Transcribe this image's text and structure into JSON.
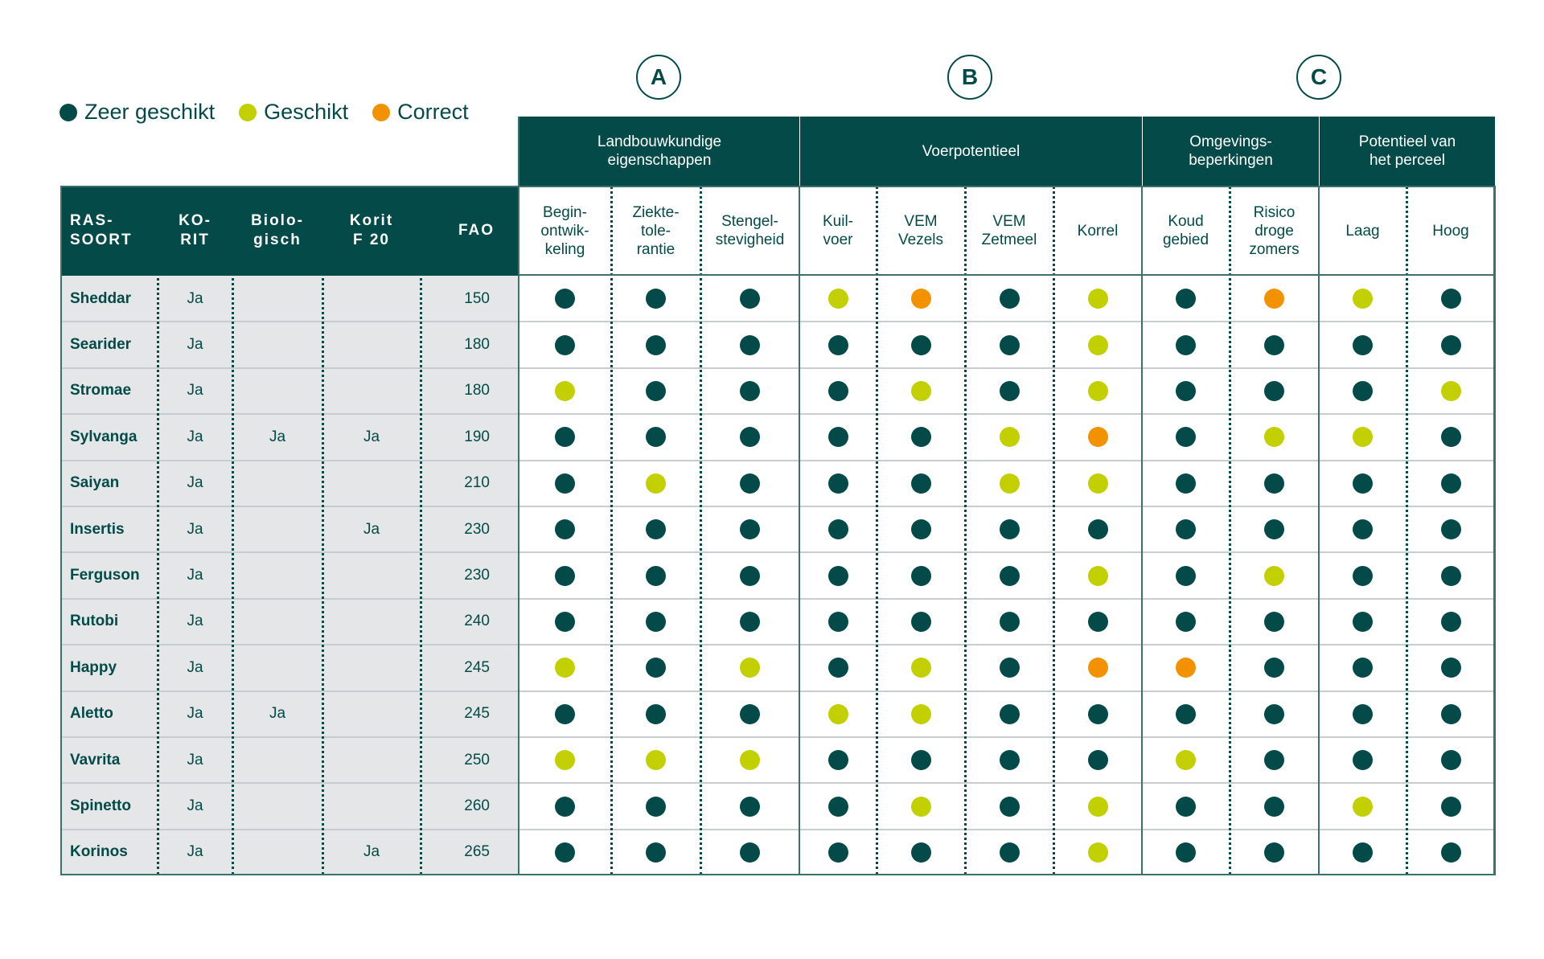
{
  "legend": [
    {
      "label": "Zeer geschikt",
      "color": "#034a48"
    },
    {
      "label": "Geschikt",
      "color": "#c2cf00"
    },
    {
      "label": "Correct",
      "color": "#f39200"
    }
  ],
  "badges": [
    "A",
    "B",
    "C"
  ],
  "colors": {
    "Z": "#034a48",
    "G": "#c2cf00",
    "C": "#f39200"
  },
  "left_headers": [
    "RAS-\nSOORT",
    "KO-\nRIT",
    "Biolo-\ngisch",
    "Korit\nF 20",
    "FAO"
  ],
  "groups": [
    {
      "label": "Landbouwkundige\neigenschappen",
      "span": 3
    },
    {
      "label": "Voerpotentieel",
      "span": 4
    },
    {
      "label": "Omgevings-\nbeperkingen",
      "span": 2
    },
    {
      "label": "Potentieel van\nhet perceel",
      "span": 2
    }
  ],
  "sub_headers": [
    "Begin-\nontwik-\nkeling",
    "Ziekte-\ntole-\nrantie",
    "Stengel-\nstevigheid",
    "Kuil-\nvoer",
    "VEM\nVezels",
    "VEM\nZetmeel",
    "Korrel",
    "Koud\ngebied",
    "Risico\ndroge\nzomers",
    "Laag",
    "Hoog"
  ],
  "rows": [
    {
      "name": "Sheddar",
      "korit": "Ja",
      "bio": "",
      "f20": "",
      "fao": "150",
      "ratings": [
        "Z",
        "Z",
        "Z",
        "G",
        "C",
        "Z",
        "G",
        "Z",
        "C",
        "G",
        "Z"
      ]
    },
    {
      "name": "Searider",
      "korit": "Ja",
      "bio": "",
      "f20": "",
      "fao": "180",
      "ratings": [
        "Z",
        "Z",
        "Z",
        "Z",
        "Z",
        "Z",
        "G",
        "Z",
        "Z",
        "Z",
        "Z"
      ]
    },
    {
      "name": "Stromae",
      "korit": "Ja",
      "bio": "",
      "f20": "",
      "fao": "180",
      "ratings": [
        "G",
        "Z",
        "Z",
        "Z",
        "G",
        "Z",
        "G",
        "Z",
        "Z",
        "Z",
        "G"
      ]
    },
    {
      "name": "Sylvanga",
      "korit": "Ja",
      "bio": "Ja",
      "f20": "Ja",
      "fao": "190",
      "ratings": [
        "Z",
        "Z",
        "Z",
        "Z",
        "Z",
        "G",
        "C",
        "Z",
        "G",
        "G",
        "Z"
      ]
    },
    {
      "name": "Saiyan",
      "korit": "Ja",
      "bio": "",
      "f20": "",
      "fao": "210",
      "ratings": [
        "Z",
        "G",
        "Z",
        "Z",
        "Z",
        "G",
        "G",
        "Z",
        "Z",
        "Z",
        "Z"
      ]
    },
    {
      "name": "Insertis",
      "korit": "Ja",
      "bio": "",
      "f20": "Ja",
      "fao": "230",
      "ratings": [
        "Z",
        "Z",
        "Z",
        "Z",
        "Z",
        "Z",
        "Z",
        "Z",
        "Z",
        "Z",
        "Z"
      ]
    },
    {
      "name": "Ferguson",
      "korit": "Ja",
      "bio": "",
      "f20": "",
      "fao": "230",
      "ratings": [
        "Z",
        "Z",
        "Z",
        "Z",
        "Z",
        "Z",
        "G",
        "Z",
        "G",
        "Z",
        "Z"
      ]
    },
    {
      "name": "Rutobi",
      "korit": "Ja",
      "bio": "",
      "f20": "",
      "fao": "240",
      "ratings": [
        "Z",
        "Z",
        "Z",
        "Z",
        "Z",
        "Z",
        "Z",
        "Z",
        "Z",
        "Z",
        "Z"
      ]
    },
    {
      "name": "Happy",
      "korit": "Ja",
      "bio": "",
      "f20": "",
      "fao": "245",
      "ratings": [
        "G",
        "Z",
        "G",
        "Z",
        "G",
        "Z",
        "C",
        "C",
        "Z",
        "Z",
        "Z"
      ]
    },
    {
      "name": "Aletto",
      "korit": "Ja",
      "bio": "Ja",
      "f20": "",
      "fao": "245",
      "ratings": [
        "Z",
        "Z",
        "Z",
        "G",
        "G",
        "Z",
        "Z",
        "Z",
        "Z",
        "Z",
        "Z"
      ]
    },
    {
      "name": "Vavrita",
      "korit": "Ja",
      "bio": "",
      "f20": "",
      "fao": "250",
      "ratings": [
        "G",
        "G",
        "G",
        "Z",
        "Z",
        "Z",
        "Z",
        "G",
        "Z",
        "Z",
        "Z"
      ]
    },
    {
      "name": "Spinetto",
      "korit": "Ja",
      "bio": "",
      "f20": "",
      "fao": "260",
      "ratings": [
        "Z",
        "Z",
        "Z",
        "Z",
        "G",
        "Z",
        "G",
        "Z",
        "Z",
        "G",
        "Z"
      ]
    },
    {
      "name": "Korinos",
      "korit": "Ja",
      "bio": "",
      "f20": "Ja",
      "fao": "265",
      "ratings": [
        "Z",
        "Z",
        "Z",
        "Z",
        "Z",
        "Z",
        "G",
        "Z",
        "Z",
        "Z",
        "Z"
      ]
    }
  ]
}
